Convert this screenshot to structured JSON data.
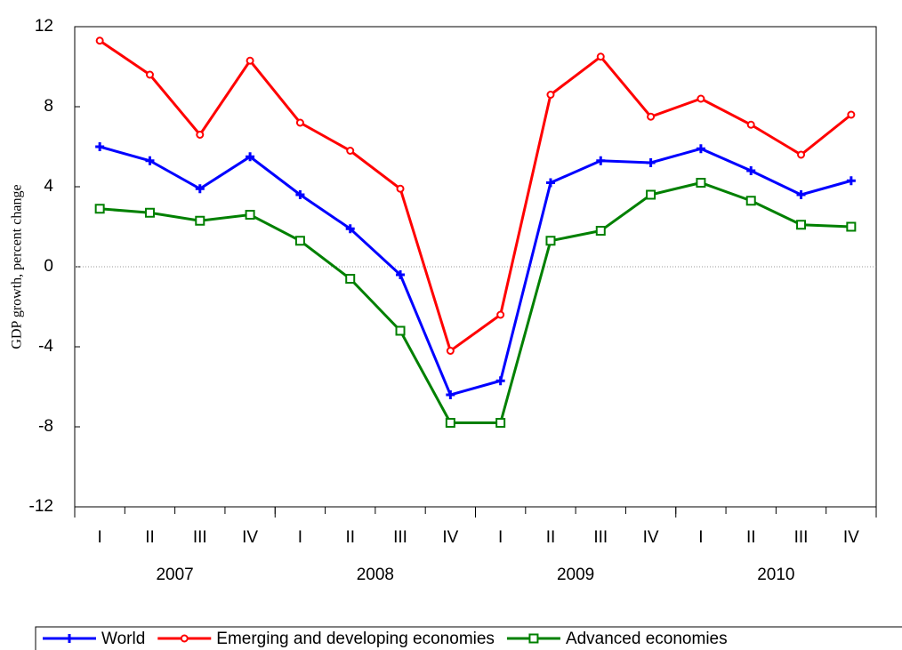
{
  "chart_data": {
    "type": "line",
    "y_label": "GDP growth, percent change",
    "categories": [
      "I",
      "II",
      "III",
      "IV",
      "I",
      "II",
      "III",
      "IV",
      "I",
      "II",
      "III",
      "IV",
      "I",
      "II",
      "III",
      "IV"
    ],
    "years": [
      "2007",
      "2008",
      "2009",
      "2010"
    ],
    "series": [
      {
        "name": "World",
        "color": "#0000ff",
        "marker": "plus",
        "values": [
          6.0,
          5.3,
          3.9,
          5.5,
          3.6,
          1.9,
          -0.4,
          -6.4,
          -5.7,
          4.2,
          5.3,
          5.2,
          5.9,
          4.8,
          3.6,
          4.3
        ]
      },
      {
        "name": "Emerging and developing economies",
        "color": "#ff0000",
        "marker": "circle",
        "values": [
          11.3,
          9.6,
          6.6,
          10.3,
          7.2,
          5.8,
          3.9,
          -4.2,
          -2.4,
          8.6,
          10.5,
          7.5,
          8.4,
          7.1,
          5.6,
          7.6
        ]
      },
      {
        "name": "Advanced economies",
        "color": "#008000",
        "marker": "square",
        "values": [
          2.9,
          2.7,
          2.3,
          2.6,
          1.3,
          -0.6,
          -3.2,
          -7.8,
          -7.8,
          1.3,
          1.8,
          3.6,
          4.2,
          3.3,
          2.1,
          2.0
        ]
      }
    ],
    "ylim": [
      -12,
      12
    ],
    "yticks": [
      -12,
      -8,
      -4,
      0,
      4,
      8,
      12
    ],
    "zero_line": true
  }
}
